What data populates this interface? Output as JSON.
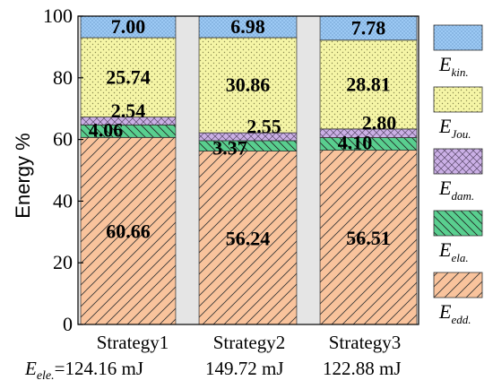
{
  "chart_data": {
    "type": "bar",
    "stacked": true,
    "title": "",
    "ylabel": "Energy %",
    "xlabel": "",
    "ylim": [
      0,
      100
    ],
    "yticks": [
      "0",
      "20",
      "40",
      "60",
      "80",
      "100"
    ],
    "categories": [
      "Strategy1",
      "Strategy2",
      "Strategy3"
    ],
    "category_sublabel_prefix": "E",
    "category_sublabel_prefix_sub": "ele.",
    "category_sublabels": [
      "=124.16 mJ",
      "149.72 mJ",
      "122.88 mJ"
    ],
    "series": [
      {
        "key": "edd",
        "name": "E",
        "sub": "edd.",
        "values": [
          60.66,
          56.24,
          56.51
        ],
        "labels": [
          "60.66",
          "56.24",
          "56.51"
        ],
        "color": "#f9c39c",
        "hatch": "diag"
      },
      {
        "key": "ela",
        "name": "E",
        "sub": "ela.",
        "values": [
          4.06,
          3.37,
          4.1
        ],
        "labels": [
          "4.06",
          "3.37",
          "4.10"
        ],
        "color": "#59cf8f",
        "hatch": "back"
      },
      {
        "key": "dam",
        "name": "E",
        "sub": "dam.",
        "values": [
          2.54,
          2.55,
          2.8
        ],
        "labels": [
          "2.54",
          "2.55",
          "2.80"
        ],
        "color": "#cbb0e6",
        "hatch": "cross"
      },
      {
        "key": "jou",
        "name": "E",
        "sub": "Jou.",
        "values": [
          25.74,
          30.86,
          28.81
        ],
        "labels": [
          "25.74",
          "30.86",
          "28.81"
        ],
        "color": "#f5f5a6",
        "hatch": "dots"
      },
      {
        "key": "kin",
        "name": "E",
        "sub": "kin.",
        "values": [
          7.0,
          6.98,
          7.78
        ],
        "labels": [
          "7.00",
          "6.98",
          "7.78"
        ],
        "color": "#9cc9f4",
        "hatch": "fine"
      }
    ],
    "gap_color": "#e5e5e5",
    "legend_position": "right"
  }
}
